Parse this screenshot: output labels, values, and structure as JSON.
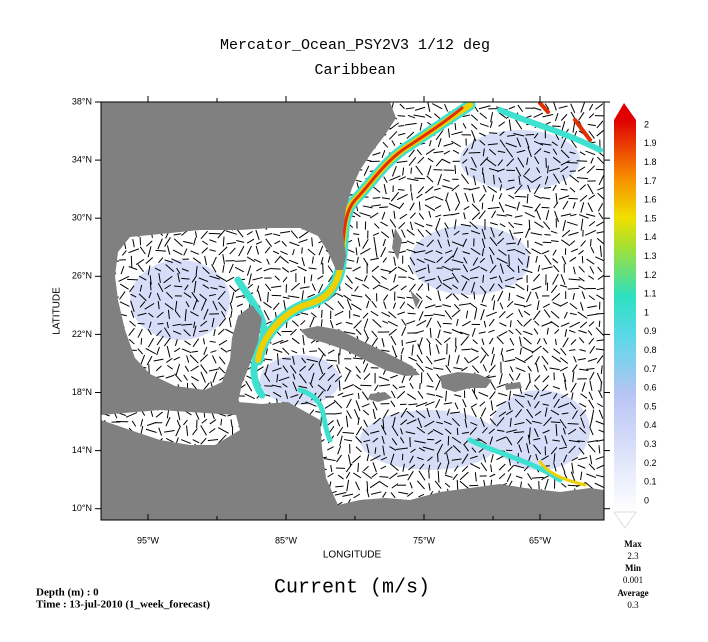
{
  "title": "Mercator_Ocean_PSY2V3 1/12 deg",
  "subtitle": "Caribbean",
  "y_axis_label": "LATITUDE",
  "x_axis_label": "LONGITUDE",
  "x_ticks": [
    "95°W",
    "85°W",
    "75°W",
    "65°W"
  ],
  "y_ticks": [
    "38°N",
    "34°N",
    "30°N",
    "26°N",
    "22°N",
    "18°N",
    "14°N",
    "10°N"
  ],
  "colorbar": {
    "labels": [
      "2",
      "1.9",
      "1.8",
      "1.7",
      "1.6",
      "1.5",
      "1.4",
      "1.3",
      "1.2",
      "1.1",
      "1",
      "0.9",
      "0.8",
      "0.7",
      "0.6",
      "0.5",
      "0.4",
      "0.3",
      "0.2",
      "0.1",
      "0"
    ]
  },
  "stats": {
    "max_label": "Max",
    "max": "2.3",
    "min_label": "Min",
    "min": "0.001",
    "average_label": "Average",
    "average": "0.3"
  },
  "variable": "Current (m/s)",
  "depth": "Depth (m) : 0",
  "time": "Time : 13-jul-2010 (1_week_forecast)"
}
